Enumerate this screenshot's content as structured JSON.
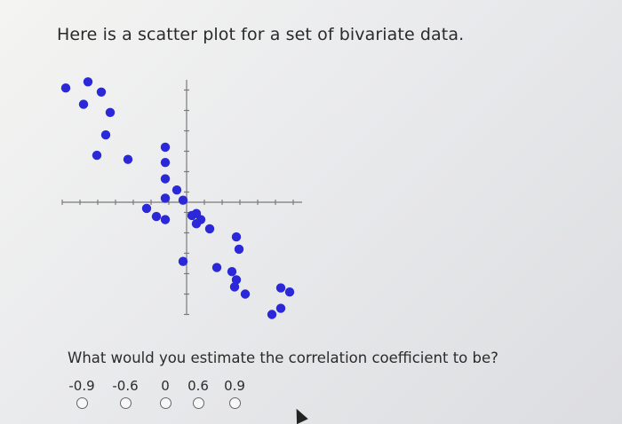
{
  "prompt": {
    "title": "Here is a scatter plot for a set of bivariate data.",
    "question": "What would you estimate the correlation coefficient to be?"
  },
  "options": [
    {
      "label": "-0.9",
      "selected": false
    },
    {
      "label": "-0.6",
      "selected": false
    },
    {
      "label": "0",
      "selected": false
    },
    {
      "label": "0.6",
      "selected": false
    },
    {
      "label": "0.9",
      "selected": false
    }
  ],
  "colors": {
    "point": "#2a28d8",
    "axis": "#7a7a7a"
  },
  "chart_data": {
    "type": "scatter",
    "title": "",
    "xlabel": "",
    "ylabel": "",
    "xlim": [
      -14,
      13
    ],
    "ylim": [
      -11,
      12
    ],
    "grid": false,
    "series": [
      {
        "points": [
          [
            -13.6,
            11.2
          ],
          [
            -11.1,
            11.8
          ],
          [
            -9.6,
            10.8
          ],
          [
            -11.6,
            9.6
          ],
          [
            -8.6,
            8.8
          ],
          [
            -9.1,
            6.6
          ],
          [
            -10.1,
            4.6
          ],
          [
            -6.6,
            4.2
          ],
          [
            -2.4,
            5.4
          ],
          [
            -2.4,
            3.9
          ],
          [
            -2.4,
            2.3
          ],
          [
            -1.1,
            1.2
          ],
          [
            -2.4,
            0.4
          ],
          [
            -0.4,
            0.2
          ],
          [
            -4.5,
            -0.6
          ],
          [
            -3.4,
            -1.4
          ],
          [
            -2.4,
            -1.7
          ],
          [
            0.6,
            -1.3
          ],
          [
            1.1,
            -1.1
          ],
          [
            1.6,
            -1.7
          ],
          [
            1.1,
            -2.1
          ],
          [
            2.6,
            -2.6
          ],
          [
            5.6,
            -3.4
          ],
          [
            5.9,
            -4.6
          ],
          [
            -0.4,
            -5.8
          ],
          [
            3.4,
            -6.4
          ],
          [
            5.1,
            -6.8
          ],
          [
            5.6,
            -7.6
          ],
          [
            5.4,
            -8.3
          ],
          [
            6.6,
            -9.0
          ],
          [
            10.6,
            -8.4
          ],
          [
            11.6,
            -8.8
          ],
          [
            10.6,
            -10.4
          ],
          [
            9.6,
            -11.0
          ]
        ]
      }
    ]
  }
}
